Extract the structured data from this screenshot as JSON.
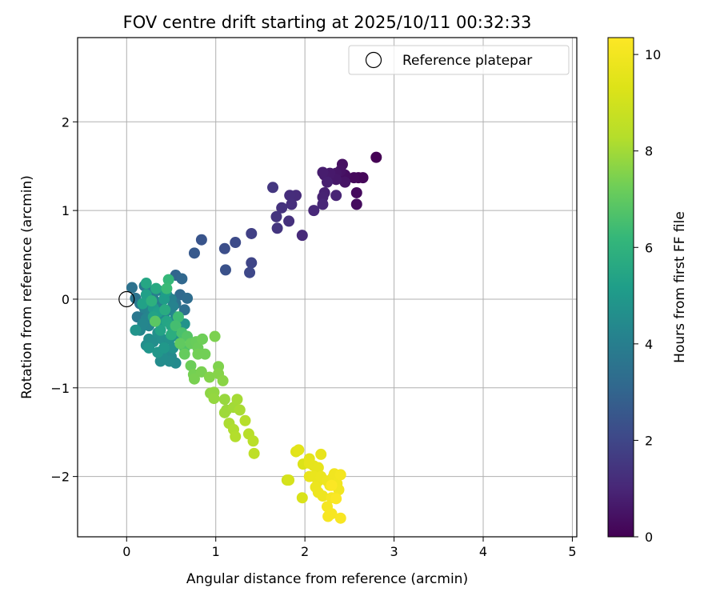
{
  "chart_data": {
    "type": "scatter",
    "title": "FOV centre drift starting at 2025/10/11 00:32:33",
    "xlabel": "Angular distance from reference (arcmin)",
    "ylabel": "Rotation from reference (arcmin)",
    "xlim": [
      -0.55,
      5.05
    ],
    "ylim": [
      -2.68,
      2.95
    ],
    "xticks": [
      "0",
      "1",
      "2",
      "3",
      "4",
      "5"
    ],
    "yticks": [
      "−2",
      "−1",
      "0",
      "1",
      "2"
    ],
    "grid": true,
    "legend": {
      "location": "top-right",
      "entries": [
        "Reference platepar"
      ]
    },
    "reference_point": {
      "x": 0,
      "y": 0
    },
    "colorbar": {
      "label": "Hours from first FF file",
      "min": 0,
      "max": 10.35,
      "ticks": [
        "0",
        "2",
        "4",
        "6",
        "8",
        "10"
      ],
      "colormap": "viridis"
    },
    "points": [
      {
        "x": 2.8,
        "y": 1.6,
        "h": 0.0
      },
      {
        "x": 2.6,
        "y": 1.37,
        "h": 0.1
      },
      {
        "x": 2.65,
        "y": 1.37,
        "h": 0.15
      },
      {
        "x": 2.55,
        "y": 1.37,
        "h": 0.2
      },
      {
        "x": 2.58,
        "y": 1.2,
        "h": 0.25
      },
      {
        "x": 2.58,
        "y": 1.07,
        "h": 0.3
      },
      {
        "x": 2.45,
        "y": 1.4,
        "h": 0.35
      },
      {
        "x": 2.42,
        "y": 1.52,
        "h": 0.4
      },
      {
        "x": 2.4,
        "y": 1.45,
        "h": 0.45
      },
      {
        "x": 2.45,
        "y": 1.32,
        "h": 0.5
      },
      {
        "x": 2.35,
        "y": 1.42,
        "h": 0.55
      },
      {
        "x": 2.35,
        "y": 1.35,
        "h": 0.6
      },
      {
        "x": 2.28,
        "y": 1.42,
        "h": 0.65
      },
      {
        "x": 2.22,
        "y": 1.4,
        "h": 0.7
      },
      {
        "x": 2.2,
        "y": 1.43,
        "h": 0.75
      },
      {
        "x": 2.25,
        "y": 1.32,
        "h": 0.8
      },
      {
        "x": 2.22,
        "y": 1.2,
        "h": 0.85
      },
      {
        "x": 2.2,
        "y": 1.15,
        "h": 0.9
      },
      {
        "x": 2.35,
        "y": 1.17,
        "h": 0.95
      },
      {
        "x": 2.2,
        "y": 1.07,
        "h": 1.0
      },
      {
        "x": 2.1,
        "y": 1.0,
        "h": 1.05
      },
      {
        "x": 1.97,
        "y": 0.72,
        "h": 1.1
      },
      {
        "x": 1.9,
        "y": 1.17,
        "h": 1.15
      },
      {
        "x": 1.83,
        "y": 1.17,
        "h": 1.2
      },
      {
        "x": 1.85,
        "y": 1.07,
        "h": 1.25
      },
      {
        "x": 1.82,
        "y": 0.88,
        "h": 1.3
      },
      {
        "x": 1.74,
        "y": 1.03,
        "h": 1.35
      },
      {
        "x": 1.68,
        "y": 0.93,
        "h": 1.4
      },
      {
        "x": 1.69,
        "y": 0.8,
        "h": 1.45
      },
      {
        "x": 1.64,
        "y": 1.26,
        "h": 1.5
      },
      {
        "x": 1.4,
        "y": 0.74,
        "h": 1.8
      },
      {
        "x": 1.4,
        "y": 0.41,
        "h": 1.95
      },
      {
        "x": 1.38,
        "y": 0.3,
        "h": 2.05
      },
      {
        "x": 1.22,
        "y": 0.64,
        "h": 2.15
      },
      {
        "x": 1.1,
        "y": 0.57,
        "h": 2.25
      },
      {
        "x": 1.11,
        "y": 0.33,
        "h": 2.35
      },
      {
        "x": 0.84,
        "y": 0.67,
        "h": 2.45
      },
      {
        "x": 0.76,
        "y": 0.52,
        "h": 2.6
      },
      {
        "x": 0.55,
        "y": 0.27,
        "h": 3.0
      },
      {
        "x": 0.62,
        "y": 0.23,
        "h": 3.1
      },
      {
        "x": 0.6,
        "y": 0.05,
        "h": 3.2
      },
      {
        "x": 0.68,
        "y": 0.01,
        "h": 3.3
      },
      {
        "x": 0.65,
        "y": -0.12,
        "h": 3.4
      },
      {
        "x": 0.55,
        "y": -0.05,
        "h": 3.5
      },
      {
        "x": 0.06,
        "y": 0.13,
        "h": 3.5
      },
      {
        "x": 0.1,
        "y": 0.01,
        "h": 3.6
      },
      {
        "x": 0.15,
        "y": -0.05,
        "h": 3.65
      },
      {
        "x": 0.12,
        "y": -0.2,
        "h": 3.7
      },
      {
        "x": 0.17,
        "y": -0.2,
        "h": 3.75
      },
      {
        "x": 0.2,
        "y": 0.15,
        "h": 3.8
      },
      {
        "x": 0.25,
        "y": 0.1,
        "h": 3.85
      },
      {
        "x": 0.28,
        "y": 0.05,
        "h": 3.9
      },
      {
        "x": 0.3,
        "y": 0.0,
        "h": 3.95
      },
      {
        "x": 0.35,
        "y": 0.1,
        "h": 4.0
      },
      {
        "x": 0.38,
        "y": -0.05,
        "h": 4.0
      },
      {
        "x": 0.4,
        "y": -0.1,
        "h": 4.05
      },
      {
        "x": 0.45,
        "y": 0.05,
        "h": 4.05
      },
      {
        "x": 0.48,
        "y": -0.12,
        "h": 4.1
      },
      {
        "x": 0.5,
        "y": 0.0,
        "h": 4.1
      },
      {
        "x": 0.52,
        "y": -0.08,
        "h": 4.15
      },
      {
        "x": 0.2,
        "y": -0.1,
        "h": 4.15
      },
      {
        "x": 0.22,
        "y": -0.22,
        "h": 4.2
      },
      {
        "x": 0.25,
        "y": -0.3,
        "h": 4.2
      },
      {
        "x": 0.28,
        "y": -0.15,
        "h": 4.25
      },
      {
        "x": 0.32,
        "y": -0.25,
        "h": 4.25
      },
      {
        "x": 0.15,
        "y": -0.35,
        "h": 4.3
      },
      {
        "x": 0.18,
        "y": -0.28,
        "h": 4.3
      },
      {
        "x": 0.42,
        "y": -0.2,
        "h": 4.35
      },
      {
        "x": 0.55,
        "y": -0.2,
        "h": 4.35
      },
      {
        "x": 0.58,
        "y": -0.35,
        "h": 4.4
      },
      {
        "x": 0.45,
        "y": -0.6,
        "h": 4.4
      },
      {
        "x": 0.5,
        "y": -0.65,
        "h": 4.45
      },
      {
        "x": 0.55,
        "y": -0.72,
        "h": 4.45
      },
      {
        "x": 0.38,
        "y": -0.7,
        "h": 4.5
      },
      {
        "x": 0.48,
        "y": -0.7,
        "h": 4.5
      },
      {
        "x": 0.4,
        "y": -0.65,
        "h": 4.55
      },
      {
        "x": 0.25,
        "y": -0.45,
        "h": 4.55
      },
      {
        "x": 0.22,
        "y": -0.52,
        "h": 4.6
      },
      {
        "x": 0.3,
        "y": -0.48,
        "h": 4.6
      },
      {
        "x": 0.35,
        "y": -0.38,
        "h": 4.65
      },
      {
        "x": 0.4,
        "y": -0.45,
        "h": 4.65
      },
      {
        "x": 0.48,
        "y": -0.45,
        "h": 4.7
      },
      {
        "x": 0.52,
        "y": -0.55,
        "h": 4.7
      },
      {
        "x": 0.6,
        "y": -0.45,
        "h": 4.75
      },
      {
        "x": 0.65,
        "y": -0.28,
        "h": 4.75
      },
      {
        "x": 0.1,
        "y": -0.35,
        "h": 4.8
      },
      {
        "x": 0.25,
        "y": -0.55,
        "h": 4.85
      },
      {
        "x": 0.35,
        "y": -0.6,
        "h": 4.9
      },
      {
        "x": 0.42,
        "y": -0.55,
        "h": 4.95
      },
      {
        "x": 0.38,
        "y": -0.28,
        "h": 5.0
      },
      {
        "x": 0.3,
        "y": -0.1,
        "h": 5.05
      },
      {
        "x": 0.42,
        "y": 0.0,
        "h": 5.1
      },
      {
        "x": 0.44,
        "y": 0.08,
        "h": 5.15
      },
      {
        "x": 0.35,
        "y": -0.15,
        "h": 5.2
      },
      {
        "x": 0.22,
        "y": 0.05,
        "h": 5.25
      },
      {
        "x": 0.18,
        "y": -0.05,
        "h": 5.3
      },
      {
        "x": 0.3,
        "y": -0.2,
        "h": 5.35
      },
      {
        "x": 0.38,
        "y": -0.35,
        "h": 5.4
      },
      {
        "x": 0.45,
        "y": -0.25,
        "h": 5.45
      },
      {
        "x": 0.5,
        "y": -0.3,
        "h": 5.5
      },
      {
        "x": 0.22,
        "y": 0.18,
        "h": 5.5
      },
      {
        "x": 0.33,
        "y": 0.12,
        "h": 5.6
      },
      {
        "x": 0.43,
        "y": -0.12,
        "h": 5.7
      },
      {
        "x": 0.5,
        "y": -0.4,
        "h": 5.8
      },
      {
        "x": 0.28,
        "y": -0.02,
        "h": 5.9
      },
      {
        "x": 0.47,
        "y": 0.22,
        "h": 6.2
      },
      {
        "x": 0.45,
        "y": 0.12,
        "h": 6.3
      },
      {
        "x": 0.58,
        "y": -0.2,
        "h": 6.4
      },
      {
        "x": 0.55,
        "y": -0.3,
        "h": 6.5
      },
      {
        "x": 0.62,
        "y": -0.38,
        "h": 6.6
      },
      {
        "x": 0.65,
        "y": -0.55,
        "h": 6.7
      },
      {
        "x": 0.68,
        "y": -0.42,
        "h": 6.8
      },
      {
        "x": 0.32,
        "y": -0.25,
        "h": 6.9
      },
      {
        "x": 0.6,
        "y": -0.5,
        "h": 7.0
      },
      {
        "x": 0.65,
        "y": -0.62,
        "h": 7.1
      },
      {
        "x": 0.72,
        "y": -0.5,
        "h": 7.1
      },
      {
        "x": 0.78,
        "y": -0.48,
        "h": 7.15
      },
      {
        "x": 0.8,
        "y": -0.55,
        "h": 7.2
      },
      {
        "x": 0.72,
        "y": -0.75,
        "h": 7.2
      },
      {
        "x": 0.85,
        "y": -0.45,
        "h": 7.25
      },
      {
        "x": 0.88,
        "y": -0.62,
        "h": 7.3
      },
      {
        "x": 0.8,
        "y": -0.62,
        "h": 7.3
      },
      {
        "x": 0.75,
        "y": -0.85,
        "h": 7.35
      },
      {
        "x": 0.76,
        "y": -0.9,
        "h": 7.4
      },
      {
        "x": 0.84,
        "y": -0.82,
        "h": 7.4
      },
      {
        "x": 0.99,
        "y": -0.42,
        "h": 7.45
      },
      {
        "x": 1.03,
        "y": -0.76,
        "h": 7.5
      },
      {
        "x": 0.93,
        "y": -0.88,
        "h": 7.55
      },
      {
        "x": 1.03,
        "y": -0.84,
        "h": 7.6
      },
      {
        "x": 1.08,
        "y": -0.92,
        "h": 7.65
      },
      {
        "x": 0.94,
        "y": -1.06,
        "h": 7.7
      },
      {
        "x": 0.98,
        "y": -1.05,
        "h": 7.75
      },
      {
        "x": 0.98,
        "y": -1.12,
        "h": 7.8
      },
      {
        "x": 1.1,
        "y": -1.13,
        "h": 7.85
      },
      {
        "x": 1.12,
        "y": -1.25,
        "h": 7.9
      },
      {
        "x": 1.1,
        "y": -1.28,
        "h": 7.95
      },
      {
        "x": 1.2,
        "y": -1.22,
        "h": 8.0
      },
      {
        "x": 1.24,
        "y": -1.13,
        "h": 8.05
      },
      {
        "x": 1.27,
        "y": -1.25,
        "h": 8.1
      },
      {
        "x": 1.15,
        "y": -1.4,
        "h": 8.15
      },
      {
        "x": 1.2,
        "y": -1.47,
        "h": 8.2
      },
      {
        "x": 1.22,
        "y": -1.55,
        "h": 8.25
      },
      {
        "x": 1.33,
        "y": -1.37,
        "h": 8.3
      },
      {
        "x": 1.37,
        "y": -1.52,
        "h": 8.35
      },
      {
        "x": 1.42,
        "y": -1.6,
        "h": 8.4
      },
      {
        "x": 1.43,
        "y": -1.74,
        "h": 8.5
      },
      {
        "x": 1.8,
        "y": -2.04,
        "h": 9.0
      },
      {
        "x": 1.82,
        "y": -2.04,
        "h": 9.1
      },
      {
        "x": 1.97,
        "y": -2.24,
        "h": 9.2
      },
      {
        "x": 1.98,
        "y": -1.86,
        "h": 9.3
      },
      {
        "x": 1.9,
        "y": -1.72,
        "h": 9.4
      },
      {
        "x": 1.93,
        "y": -1.7,
        "h": 9.5
      },
      {
        "x": 2.05,
        "y": -1.8,
        "h": 9.55
      },
      {
        "x": 2.05,
        "y": -1.85,
        "h": 9.6
      },
      {
        "x": 2.1,
        "y": -1.88,
        "h": 9.62
      },
      {
        "x": 2.15,
        "y": -1.9,
        "h": 9.65
      },
      {
        "x": 2.18,
        "y": -1.75,
        "h": 9.68
      },
      {
        "x": 2.05,
        "y": -2.0,
        "h": 9.7
      },
      {
        "x": 2.1,
        "y": -2.0,
        "h": 9.72
      },
      {
        "x": 2.15,
        "y": -2.05,
        "h": 9.75
      },
      {
        "x": 2.18,
        "y": -2.0,
        "h": 9.78
      },
      {
        "x": 2.12,
        "y": -2.12,
        "h": 9.8
      },
      {
        "x": 2.15,
        "y": -2.18,
        "h": 9.82
      },
      {
        "x": 2.2,
        "y": -2.22,
        "h": 9.85
      },
      {
        "x": 2.25,
        "y": -2.05,
        "h": 9.88
      },
      {
        "x": 2.28,
        "y": -2.1,
        "h": 9.9
      },
      {
        "x": 2.32,
        "y": -2.0,
        "h": 9.92
      },
      {
        "x": 2.33,
        "y": -1.97,
        "h": 9.95
      },
      {
        "x": 2.36,
        "y": -2.08,
        "h": 9.98
      },
      {
        "x": 2.38,
        "y": -2.15,
        "h": 10.0
      },
      {
        "x": 2.4,
        "y": -1.98,
        "h": 10.05
      },
      {
        "x": 2.3,
        "y": -2.24,
        "h": 10.08
      },
      {
        "x": 2.25,
        "y": -2.34,
        "h": 10.1
      },
      {
        "x": 2.26,
        "y": -2.45,
        "h": 10.12
      },
      {
        "x": 2.3,
        "y": -2.42,
        "h": 10.15
      },
      {
        "x": 2.4,
        "y": -2.47,
        "h": 10.2
      },
      {
        "x": 2.35,
        "y": -2.25,
        "h": 10.25
      },
      {
        "x": 2.3,
        "y": -2.1,
        "h": 10.3
      }
    ]
  }
}
